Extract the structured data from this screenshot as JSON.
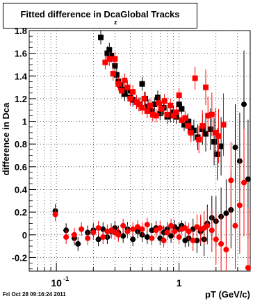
{
  "title": {
    "main": "Fitted difference in Dca",
    "subscript": "z",
    "suffix": "Global Tracks"
  },
  "footer": "Fri Oct 28 09:16:24 2011",
  "colors": {
    "series_a": "#000000",
    "series_b": "#ff0000",
    "grid": "#000000"
  },
  "chart_data": {
    "type": "scatter",
    "title": "Fitted difference in Dca Global Tracks",
    "xlabel": "pT (GeV/c)",
    "ylabel": "difference in Dca",
    "xscale": "log",
    "xlim": [
      0.06,
      3.8
    ],
    "ylim": [
      -0.32,
      1.8
    ],
    "grid": true,
    "xticks": [
      {
        "v": 0.1,
        "label": "10",
        "sup": "-1"
      },
      {
        "v": 1,
        "label": "1"
      }
    ],
    "yticks": [
      -0.2,
      0,
      0.2,
      0.4,
      0.6,
      0.8,
      1,
      1.2,
      1.4,
      1.6,
      1.8
    ],
    "series": [
      {
        "marker": "square",
        "color": "#000000",
        "points": [
          [
            0.23,
            1.74
          ],
          [
            0.26,
            1.6
          ],
          [
            0.27,
            1.63
          ],
          [
            0.28,
            1.58
          ],
          [
            0.3,
            1.49
          ],
          [
            0.31,
            1.41
          ],
          [
            0.32,
            1.35
          ],
          [
            0.33,
            1.32
          ],
          [
            0.35,
            1.28
          ],
          [
            0.36,
            1.24
          ],
          [
            0.38,
            1.27
          ],
          [
            0.4,
            1.21
          ],
          [
            0.42,
            1.19
          ],
          [
            0.45,
            1.17
          ],
          [
            0.48,
            1.15
          ],
          [
            0.5,
            1.33
          ],
          [
            0.53,
            1.2
          ],
          [
            0.56,
            1.13
          ],
          [
            0.6,
            1.09
          ],
          [
            0.63,
            1.15
          ],
          [
            0.67,
            1.21
          ],
          [
            0.7,
            1.07
          ],
          [
            0.75,
            1.12
          ],
          [
            0.8,
            1.04
          ],
          [
            0.85,
            1.05
          ],
          [
            0.9,
            1.08
          ],
          [
            0.95,
            1.04
          ],
          [
            1.0,
            1.15
          ],
          [
            1.05,
            1.11
          ],
          [
            1.1,
            0.97
          ],
          [
            1.18,
            1.0
          ],
          [
            1.25,
            0.94
          ],
          [
            1.32,
            0.92
          ],
          [
            1.42,
            0.86
          ],
          [
            1.55,
            0.93
          ],
          [
            1.65,
            0.89
          ],
          [
            1.8,
            0.93
          ],
          [
            1.93,
            0.82
          ],
          [
            2.05,
            0.71
          ],
          [
            2.2,
            0.78
          ]
        ]
      },
      {
        "marker": "square",
        "color": "#ff0000",
        "points": [
          [
            0.25,
            1.52
          ],
          [
            0.27,
            1.55
          ],
          [
            0.29,
            1.42
          ],
          [
            0.3,
            1.55
          ],
          [
            0.32,
            1.33
          ],
          [
            0.34,
            1.27
          ],
          [
            0.36,
            1.36
          ],
          [
            0.38,
            1.3
          ],
          [
            0.4,
            1.2
          ],
          [
            0.42,
            1.26
          ],
          [
            0.45,
            1.17
          ],
          [
            0.47,
            1.15
          ],
          [
            0.5,
            1.12
          ],
          [
            0.52,
            1.2
          ],
          [
            0.55,
            1.09
          ],
          [
            0.58,
            1.14
          ],
          [
            0.61,
            1.06
          ],
          [
            0.65,
            1.05
          ],
          [
            0.68,
            1.16
          ],
          [
            0.72,
            1.11
          ],
          [
            0.76,
            1.18
          ],
          [
            0.8,
            1.06
          ],
          [
            0.85,
            1.14
          ],
          [
            0.9,
            1.05
          ],
          [
            0.95,
            1.08
          ],
          [
            1.0,
            1.23
          ],
          [
            1.05,
            1.01
          ],
          [
            1.12,
            1.03
          ],
          [
            1.18,
            0.96
          ],
          [
            1.25,
            0.9
          ],
          [
            1.35,
            1.38
          ],
          [
            1.45,
            0.84
          ],
          [
            1.55,
            0.96
          ],
          [
            1.65,
            1.3
          ],
          [
            1.72,
            1.05
          ],
          [
            1.85,
            1.06
          ],
          [
            1.98,
            0.9
          ],
          [
            2.1,
            0.87
          ],
          [
            2.3,
            0.97
          ]
        ]
      },
      {
        "marker": "circle",
        "color": "#000000",
        "points": [
          [
            0.098,
            0.21
          ],
          [
            0.12,
            0.04
          ],
          [
            0.14,
            -0.03
          ],
          [
            0.15,
            -0.08
          ],
          [
            0.18,
            0.02
          ],
          [
            0.2,
            0.04
          ],
          [
            0.22,
            -0.04
          ],
          [
            0.24,
            0.05
          ],
          [
            0.26,
            -0.02
          ],
          [
            0.28,
            0.03
          ],
          [
            0.3,
            0.06
          ],
          [
            0.32,
            0.02
          ],
          [
            0.35,
            -0.01
          ],
          [
            0.38,
            0.05
          ],
          [
            0.42,
            -0.04
          ],
          [
            0.46,
            0.03
          ],
          [
            0.5,
            0.0
          ],
          [
            0.55,
            -0.02
          ],
          [
            0.6,
            0.04
          ],
          [
            0.65,
            0.06
          ],
          [
            0.7,
            -0.03
          ],
          [
            0.75,
            0.02
          ],
          [
            0.8,
            0.05
          ],
          [
            0.86,
            -0.01
          ],
          [
            0.92,
            0.07
          ],
          [
            1.0,
            0.05
          ],
          [
            1.05,
            0.08
          ],
          [
            1.12,
            -0.05
          ],
          [
            1.2,
            -0.03
          ],
          [
            1.3,
            0.05
          ],
          [
            1.4,
            -0.05
          ],
          [
            1.5,
            0.03
          ],
          [
            1.6,
            -0.04
          ],
          [
            1.7,
            0.1
          ],
          [
            1.85,
            0.15
          ],
          [
            2.0,
            0.12
          ],
          [
            2.2,
            0.16
          ],
          [
            2.42,
            0.19
          ],
          [
            2.65,
            0.22
          ],
          [
            2.87,
            0.77
          ],
          [
            3.12,
            0.65
          ],
          [
            3.38,
            1.15
          ],
          [
            3.65,
            0.49
          ]
        ]
      },
      {
        "marker": "circle",
        "color": "#ff0000",
        "points": [
          [
            0.098,
            0.18
          ],
          [
            0.12,
            -0.02
          ],
          [
            0.14,
            0.0
          ],
          [
            0.16,
            0.05
          ],
          [
            0.18,
            -0.03
          ],
          [
            0.2,
            0.02
          ],
          [
            0.22,
            0.06
          ],
          [
            0.24,
            -0.02
          ],
          [
            0.26,
            0.03
          ],
          [
            0.28,
            0.04
          ],
          [
            0.3,
            0.02
          ],
          [
            0.32,
            0.0
          ],
          [
            0.35,
            0.08
          ],
          [
            0.38,
            0.03
          ],
          [
            0.42,
            0.05
          ],
          [
            0.46,
            0.07
          ],
          [
            0.5,
            0.05
          ],
          [
            0.55,
            0.09
          ],
          [
            0.6,
            -0.03
          ],
          [
            0.65,
            0.04
          ],
          [
            0.7,
            0.06
          ],
          [
            0.75,
            -0.05
          ],
          [
            0.8,
            0.02
          ],
          [
            0.86,
            0.08
          ],
          [
            0.92,
            0.03
          ],
          [
            1.0,
            -0.02
          ],
          [
            1.05,
            0.05
          ],
          [
            1.12,
            0.06
          ],
          [
            1.2,
            0.03
          ],
          [
            1.3,
            -0.05
          ],
          [
            1.4,
            0.07
          ],
          [
            1.5,
            0.05
          ],
          [
            1.6,
            0.06
          ],
          [
            1.7,
            0.08
          ],
          [
            1.85,
            0.04
          ],
          [
            2.0,
            -0.04
          ],
          [
            2.2,
            -0.08
          ],
          [
            2.42,
            -0.13
          ],
          [
            2.65,
            0.48
          ],
          [
            2.87,
            0.08
          ],
          [
            3.12,
            0.26
          ],
          [
            3.38,
            0.46
          ],
          [
            3.65,
            -0.29
          ]
        ]
      }
    ]
  }
}
